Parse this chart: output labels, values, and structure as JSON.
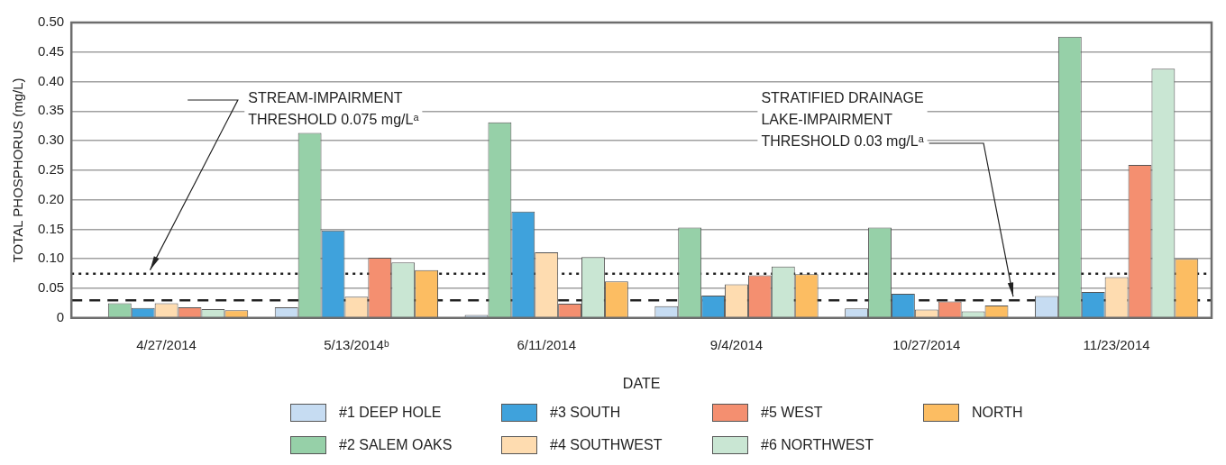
{
  "chart_data": {
    "type": "bar",
    "xlabel": "DATE",
    "ylabel": "TOTAL PHOSPHORUS (mg/L)",
    "categories": [
      "4/27/2014",
      "5/13/2014ᵇ",
      "6/11/2014",
      "9/4/2014",
      "10/27/2014",
      "11/23/2014"
    ],
    "series": [
      {
        "name": "#1 DEEP HOLE",
        "color": "#c6dcf2",
        "values": [
          null,
          0.018,
          0.005,
          0.02,
          0.016,
          0.037
        ]
      },
      {
        "name": "#2 SALEM OAKS",
        "color": "#96d0a8",
        "values": [
          0.025,
          0.313,
          0.331,
          0.153,
          0.153,
          0.476
        ]
      },
      {
        "name": "#3 SOUTH",
        "color": "#3fa2dc",
        "values": [
          0.017,
          0.148,
          0.18,
          0.038,
          0.041,
          0.044
        ]
      },
      {
        "name": "#4 SOUTHWEST",
        "color": "#fedcb0",
        "values": [
          0.025,
          0.036,
          0.111,
          0.057,
          0.014,
          0.069
        ]
      },
      {
        "name": "#5 WEST",
        "color": "#f48f70",
        "values": [
          0.018,
          0.102,
          0.024,
          0.072,
          0.028,
          0.259
        ]
      },
      {
        "name": "#6 NORTHWEST",
        "color": "#c9e6d3",
        "values": [
          0.015,
          0.094,
          0.103,
          0.087,
          0.011,
          0.422
        ]
      },
      {
        "name": "NORTH",
        "color": "#fcbd62",
        "values": [
          0.013,
          0.081,
          0.062,
          0.074,
          0.021,
          0.1
        ]
      }
    ],
    "ylim": [
      0,
      0.5
    ],
    "yticks": [
      0,
      0.05,
      {
        "value": 0.1,
        "label": "0.10"
      },
      0.15,
      {
        "value": 0.2,
        "label": "0.20"
      },
      0.25,
      {
        "value": 0.3,
        "label": "0.30"
      },
      0.35,
      {
        "value": 0.4,
        "label": "0.40"
      },
      0.45,
      {
        "value": 0.5,
        "label": "0.50"
      }
    ],
    "grid": "y",
    "legend": "bottom",
    "ref_lines": [
      {
        "axis": "y",
        "value": 0.075,
        "label": "STREAM-IMPAIRMENT\nTHRESHOLD 0.075 mg/Lᵃ",
        "color": "#222222",
        "line_style": "dotted"
      },
      {
        "axis": "y",
        "value": 0.03,
        "label": "STRATIFIED DRAINAGE\nLAKE-IMPAIRMENT\nTHRESHOLD 0.03 mg/Lᵃ",
        "color": "#222222",
        "line_style": "dashed"
      }
    ]
  }
}
